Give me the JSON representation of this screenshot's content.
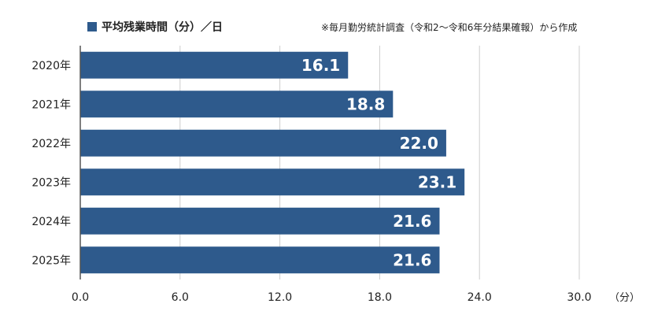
{
  "legend": {
    "label": "平均残業時間（分）／日",
    "color": "#2e5a8c"
  },
  "note": "※毎月勤労統計調査（令和2〜令和6年分結果確報）から作成",
  "unit_label": "（分）",
  "chart_data": {
    "type": "bar",
    "orientation": "horizontal",
    "categories": [
      "2020年",
      "2021年",
      "2022年",
      "2023年",
      "2024年",
      "2025年"
    ],
    "series": [
      {
        "name": "平均残業時間（分）／日",
        "values": [
          16.1,
          18.8,
          22.0,
          23.1,
          21.6,
          21.6
        ],
        "color": "#2e5a8c"
      }
    ],
    "data_labels": [
      "16.1",
      "18.8",
      "22.0",
      "23.1",
      "21.6",
      "21.6"
    ],
    "xlim": [
      0,
      30
    ],
    "xticks": [
      0,
      6,
      12,
      18,
      24,
      30
    ],
    "xtick_labels": [
      "0.0",
      "6.0",
      "12.0",
      "18.0",
      "24.0",
      "30.0"
    ],
    "grid": "vertical",
    "legend_position": "top-left"
  }
}
